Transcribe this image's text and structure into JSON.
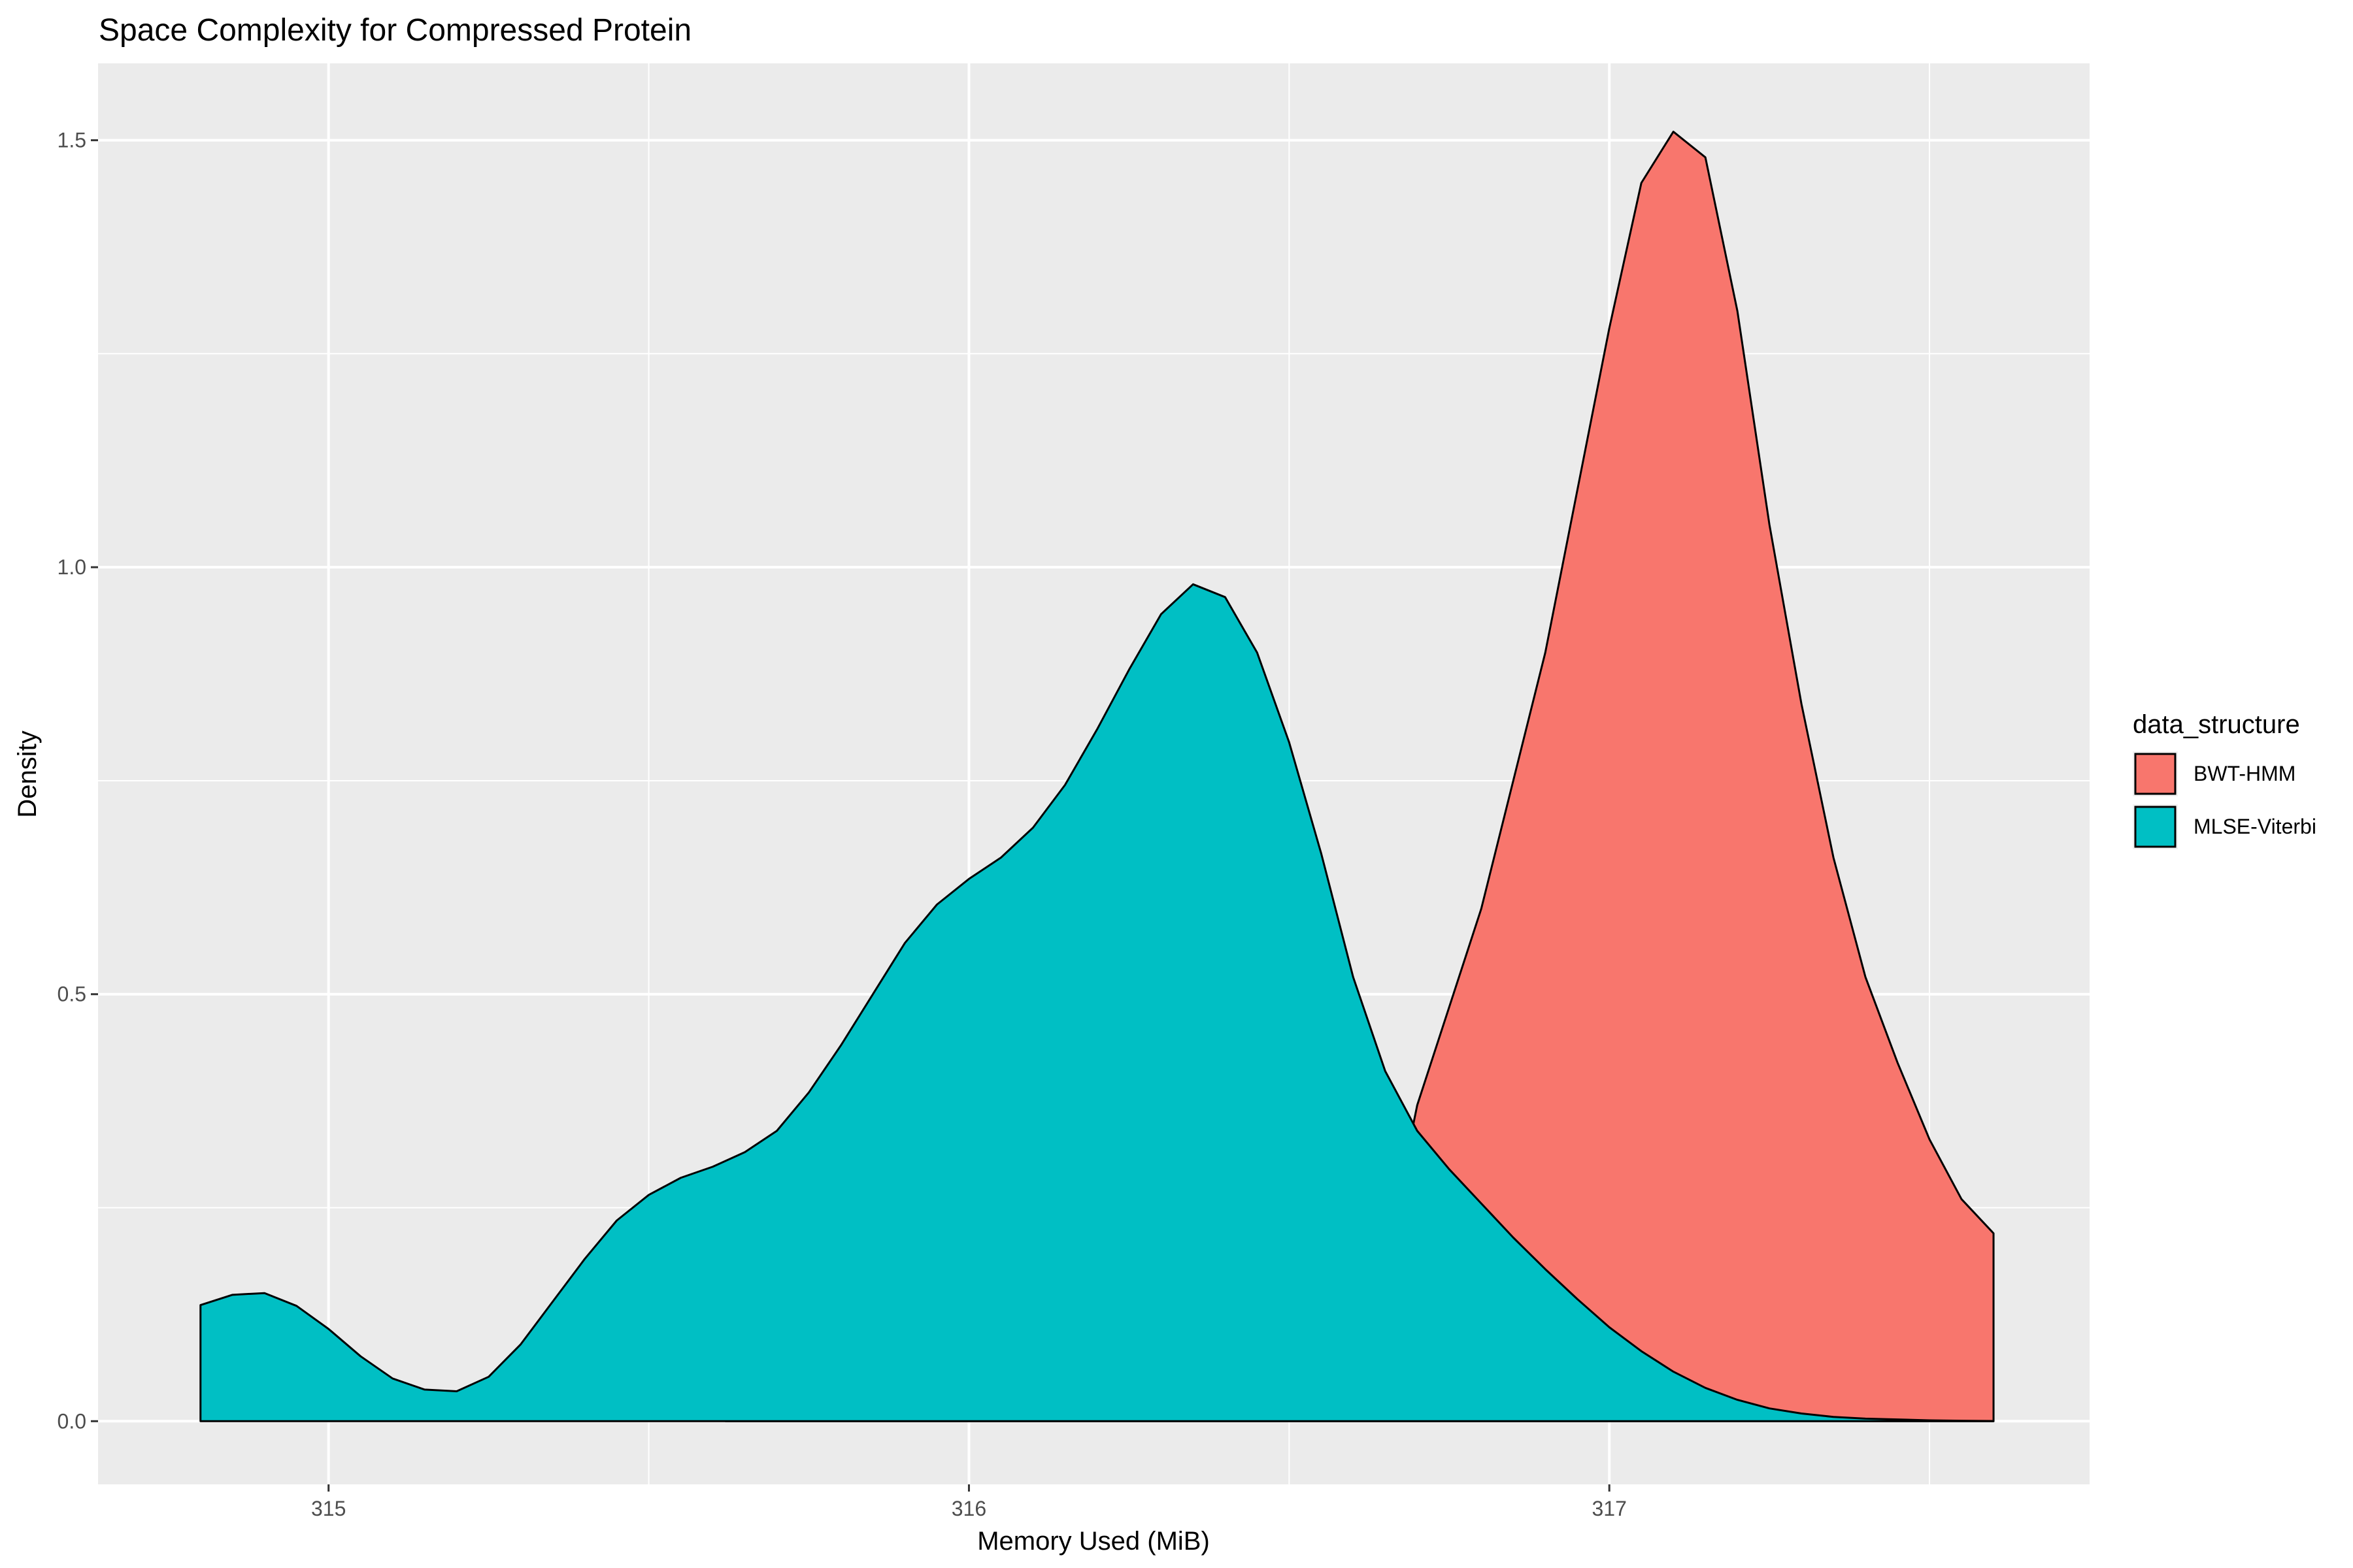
{
  "chart_data": {
    "type": "area",
    "title": "Space Complexity for Compressed Protein",
    "xlabel": "Memory Used (MiB)",
    "ylabel": "Density",
    "xlim": [
      314.64,
      317.75
    ],
    "ylim": [
      -0.074,
      1.59
    ],
    "x_ticks": [
      315,
      316,
      317
    ],
    "x_tick_labels": [
      "315",
      "316",
      "317"
    ],
    "y_ticks": [
      0.0,
      0.5,
      1.0,
      1.5
    ],
    "y_tick_labels": [
      "0.0",
      "0.5",
      "1.0",
      "1.5"
    ],
    "grid": true,
    "legend": {
      "title": "data_structure",
      "position": "right",
      "entries": [
        "BWT-HMM",
        "MLSE-Viterbi"
      ]
    },
    "series": [
      {
        "name": "BWT-HMM",
        "color": "#F8766D",
        "x": [
          315.62,
          315.7,
          315.8,
          315.9,
          316.0,
          316.1,
          316.2,
          316.3,
          316.4,
          316.5,
          316.6,
          316.7,
          316.8,
          316.9,
          317.0,
          317.05,
          317.1,
          317.15,
          317.2,
          317.25,
          317.3,
          317.35,
          317.4,
          317.45,
          317.5,
          317.55,
          317.6
        ],
        "values": [
          0.0,
          0.0,
          0.0,
          0.0,
          0.0,
          0.0,
          0.0,
          0.0,
          0.0,
          0.0,
          0.0,
          0.0,
          0.0,
          0.0,
          0.0,
          0.0,
          0.0,
          0.0,
          0.0,
          0.0,
          0.0,
          0.0,
          0.0,
          0.0,
          0.0,
          0.0,
          0.0
        ],
        "upper": [
          0.0,
          0.0,
          0.0,
          0.0,
          0.0,
          0.0,
          0.0,
          0.0,
          0.0,
          0.0,
          0.002,
          0.37,
          0.6,
          0.9,
          1.28,
          1.45,
          1.51,
          1.48,
          1.3,
          1.05,
          0.84,
          0.66,
          0.52,
          0.42,
          0.33,
          0.26,
          0.22
        ]
      },
      {
        "name": "MLSE-Viterbi",
        "color": "#00BFC4",
        "x": [
          314.8,
          314.85,
          314.9,
          314.95,
          315.0,
          315.05,
          315.1,
          315.15,
          315.2,
          315.25,
          315.3,
          315.35,
          315.4,
          315.45,
          315.5,
          315.55,
          315.6,
          315.65,
          315.7,
          315.75,
          315.8,
          315.85,
          315.9,
          315.95,
          316.0,
          316.05,
          316.1,
          316.15,
          316.2,
          316.25,
          316.3,
          316.35,
          316.4,
          316.45,
          316.5,
          316.55,
          316.6,
          316.65,
          316.7,
          316.75,
          316.8,
          316.85,
          316.9,
          316.95,
          317.0,
          317.05,
          317.1,
          317.15,
          317.2,
          317.25,
          317.3,
          317.35,
          317.4,
          317.45,
          317.5,
          317.55,
          317.6
        ],
        "values": [
          0.136,
          0.148,
          0.15,
          0.135,
          0.108,
          0.076,
          0.05,
          0.037,
          0.035,
          0.052,
          0.09,
          0.14,
          0.19,
          0.235,
          0.265,
          0.285,
          0.298,
          0.315,
          0.34,
          0.385,
          0.44,
          0.5,
          0.56,
          0.605,
          0.635,
          0.66,
          0.695,
          0.745,
          0.81,
          0.88,
          0.945,
          0.98,
          0.965,
          0.9,
          0.795,
          0.665,
          0.52,
          0.41,
          0.34,
          0.295,
          0.255,
          0.215,
          0.178,
          0.143,
          0.11,
          0.082,
          0.058,
          0.039,
          0.025,
          0.015,
          0.009,
          0.005,
          0.003,
          0.002,
          0.001,
          0.0005,
          0.0002
        ]
      }
    ]
  }
}
